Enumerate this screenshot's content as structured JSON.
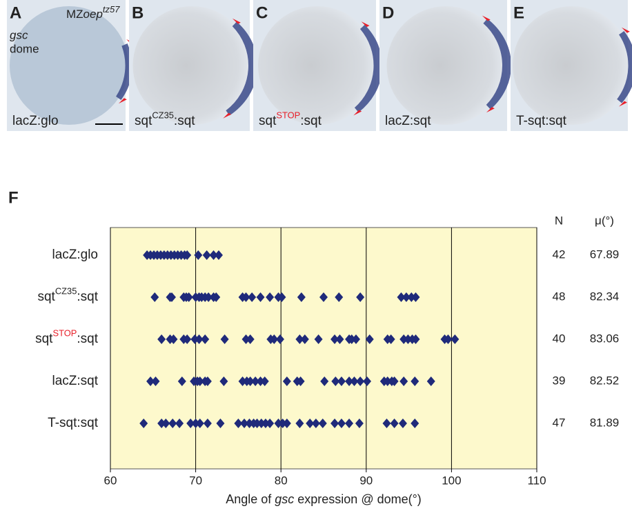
{
  "panels": [
    {
      "letter": "A",
      "label": {
        "parts": [
          "lacZ:glo"
        ]
      }
    },
    {
      "letter": "B",
      "label": {
        "parts": [
          "sqt",
          "CZ35",
          ":sqt"
        ]
      }
    },
    {
      "letter": "C",
      "label": {
        "parts": [
          "sqt",
          "STOP",
          ":sqt"
        ],
        "sup_color": "#e8202a"
      }
    },
    {
      "letter": "D",
      "label": {
        "parts": [
          "lacZ:sqt"
        ]
      }
    },
    {
      "letter": "E",
      "label": {
        "parts": [
          "T-sqt:sqt"
        ]
      }
    }
  ],
  "panel_a_annotations": {
    "gene": "gsc",
    "stage": "dome",
    "genotype": [
      "MZ",
      "oep",
      "tz57"
    ]
  },
  "chart_data": {
    "type": "strip",
    "panel_letter": "F",
    "categories": [
      {
        "parts": [
          "lacZ:glo"
        ]
      },
      {
        "parts": [
          "sqt",
          "CZ35",
          ":sqt"
        ]
      },
      {
        "parts": [
          "sqt",
          "STOP",
          ":sqt"
        ],
        "sup_color": "#e8202a"
      },
      {
        "parts": [
          "lacZ:sqt"
        ]
      },
      {
        "parts": [
          "T-sqt:sqt"
        ]
      }
    ],
    "values": [
      [
        64.3,
        64.7,
        65.1,
        65.5,
        65.9,
        66.3,
        66.7,
        67.1,
        67.5,
        67.9,
        68.3,
        68.7,
        69.0,
        70.3,
        71.3,
        72.1,
        72.7
      ],
      [
        65.2,
        67.0,
        67.2,
        68.6,
        68.9,
        69.2,
        70.0,
        70.4,
        70.7,
        71.1,
        71.5,
        72.1,
        72.4,
        75.5,
        75.9,
        76.6,
        77.6,
        78.7,
        79.7,
        80.1,
        82.4,
        85.0,
        86.8,
        89.3,
        94.1,
        94.7,
        95.3,
        95.8
      ],
      [
        66.0,
        67.0,
        67.4,
        68.6,
        69.0,
        69.9,
        70.4,
        71.1,
        73.4,
        75.9,
        76.4,
        78.8,
        79.2,
        79.9,
        82.2,
        82.8,
        84.4,
        86.3,
        86.9,
        88.0,
        88.3,
        88.8,
        90.4,
        92.5,
        92.9,
        94.4,
        94.9,
        95.4,
        95.8,
        99.2,
        99.6,
        100.4
      ],
      [
        64.7,
        65.3,
        68.4,
        69.8,
        70.2,
        70.5,
        71.1,
        71.4,
        73.3,
        75.5,
        76.0,
        76.4,
        77.0,
        77.6,
        78.1,
        80.7,
        81.9,
        82.3,
        85.1,
        86.4,
        87.1,
        88.0,
        88.6,
        89.3,
        90.1,
        92.1,
        92.5,
        93.0,
        93.3,
        94.4,
        95.7,
        97.6
      ],
      [
        63.9,
        66.0,
        66.5,
        67.3,
        68.1,
        69.4,
        70.0,
        70.5,
        71.4,
        72.9,
        75.0,
        75.7,
        76.3,
        76.8,
        77.2,
        77.7,
        78.2,
        78.7,
        79.7,
        80.2,
        80.7,
        82.2,
        83.4,
        84.1,
        84.9,
        86.3,
        87.1,
        88.0,
        89.2,
        92.4,
        93.3,
        94.3,
        95.7
      ]
    ],
    "n_header": "N",
    "mean_header": "μ(°)",
    "n": [
      42,
      48,
      40,
      39,
      47
    ],
    "mean": [
      67.89,
      82.34,
      83.06,
      82.52,
      81.89
    ],
    "xlabel": [
      "Angle of ",
      "gsc",
      " expression @ dome(°)"
    ],
    "xlim": [
      60,
      110
    ],
    "xticks": [
      60,
      70,
      80,
      90,
      100,
      110
    ],
    "grid": true,
    "color": "#1f2a7a",
    "background": "#fdf9cc"
  }
}
